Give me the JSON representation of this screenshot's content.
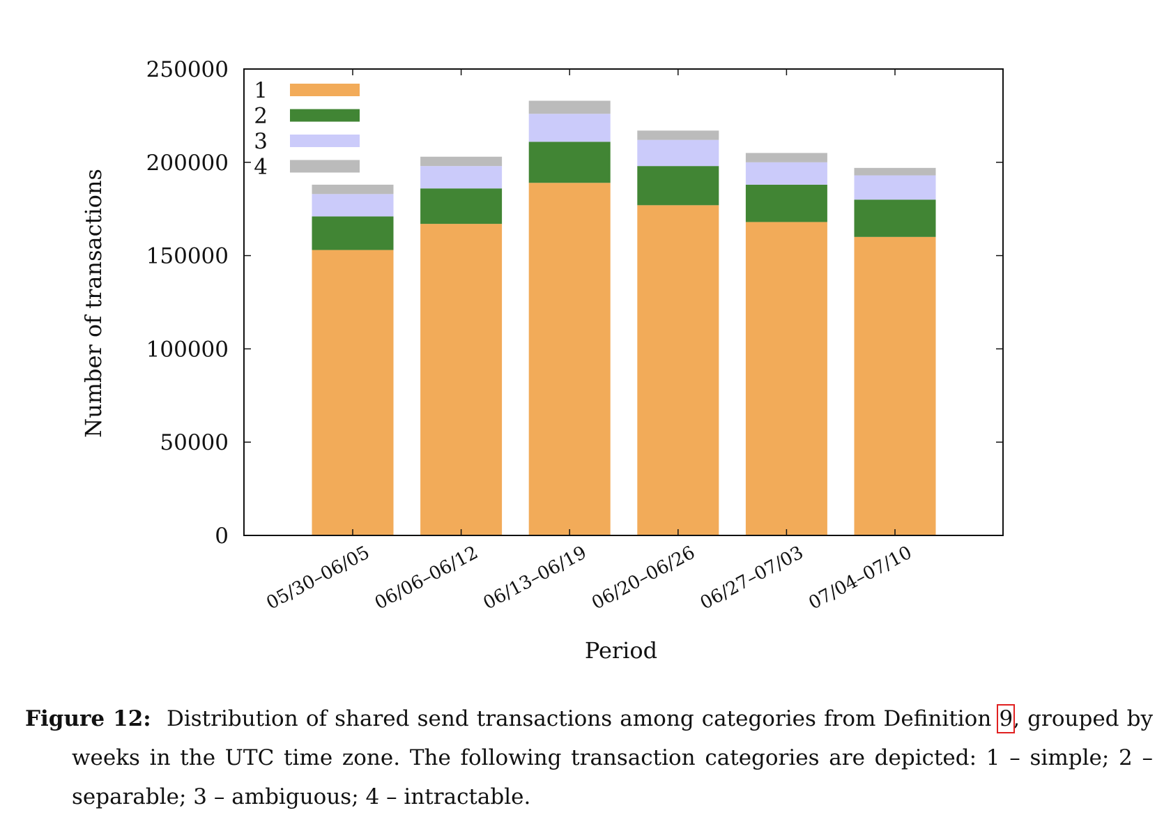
{
  "chart_data": {
    "type": "bar",
    "stacked": true,
    "categories": [
      "05/30–06/05",
      "06/06–06/12",
      "06/13–06/19",
      "06/20–06/26",
      "06/27–07/03",
      "07/04–07/10"
    ],
    "series": [
      {
        "name": "1",
        "color": "#f2ab59",
        "values": [
          153000,
          167000,
          189000,
          177000,
          168000,
          160000
        ]
      },
      {
        "name": "2",
        "color": "#418534",
        "values": [
          18000,
          19000,
          22000,
          21000,
          20000,
          20000
        ]
      },
      {
        "name": "3",
        "color": "#cbcbfa",
        "values": [
          12000,
          12000,
          15000,
          14000,
          12000,
          13000
        ]
      },
      {
        "name": "4",
        "color": "#bbbbbb",
        "values": [
          5000,
          5000,
          7000,
          5000,
          5000,
          4000
        ]
      }
    ],
    "xlabel": "Period",
    "ylabel": "Number of transactions",
    "ylim": [
      0,
      250000
    ],
    "yticks": [
      0,
      50000,
      100000,
      150000,
      200000,
      250000
    ],
    "grid": false,
    "legend": "top-left"
  },
  "caption": {
    "label": "Figure 12:",
    "text_before": "Distribution of shared send transactions among categories from Definition ",
    "ref": "9",
    "text_after": ", grouped by weeks in the UTC time zone.  The following transaction categories are depicted:  1 – simple; 2 – separable; 3 – ambiguous; 4 – intractable."
  }
}
